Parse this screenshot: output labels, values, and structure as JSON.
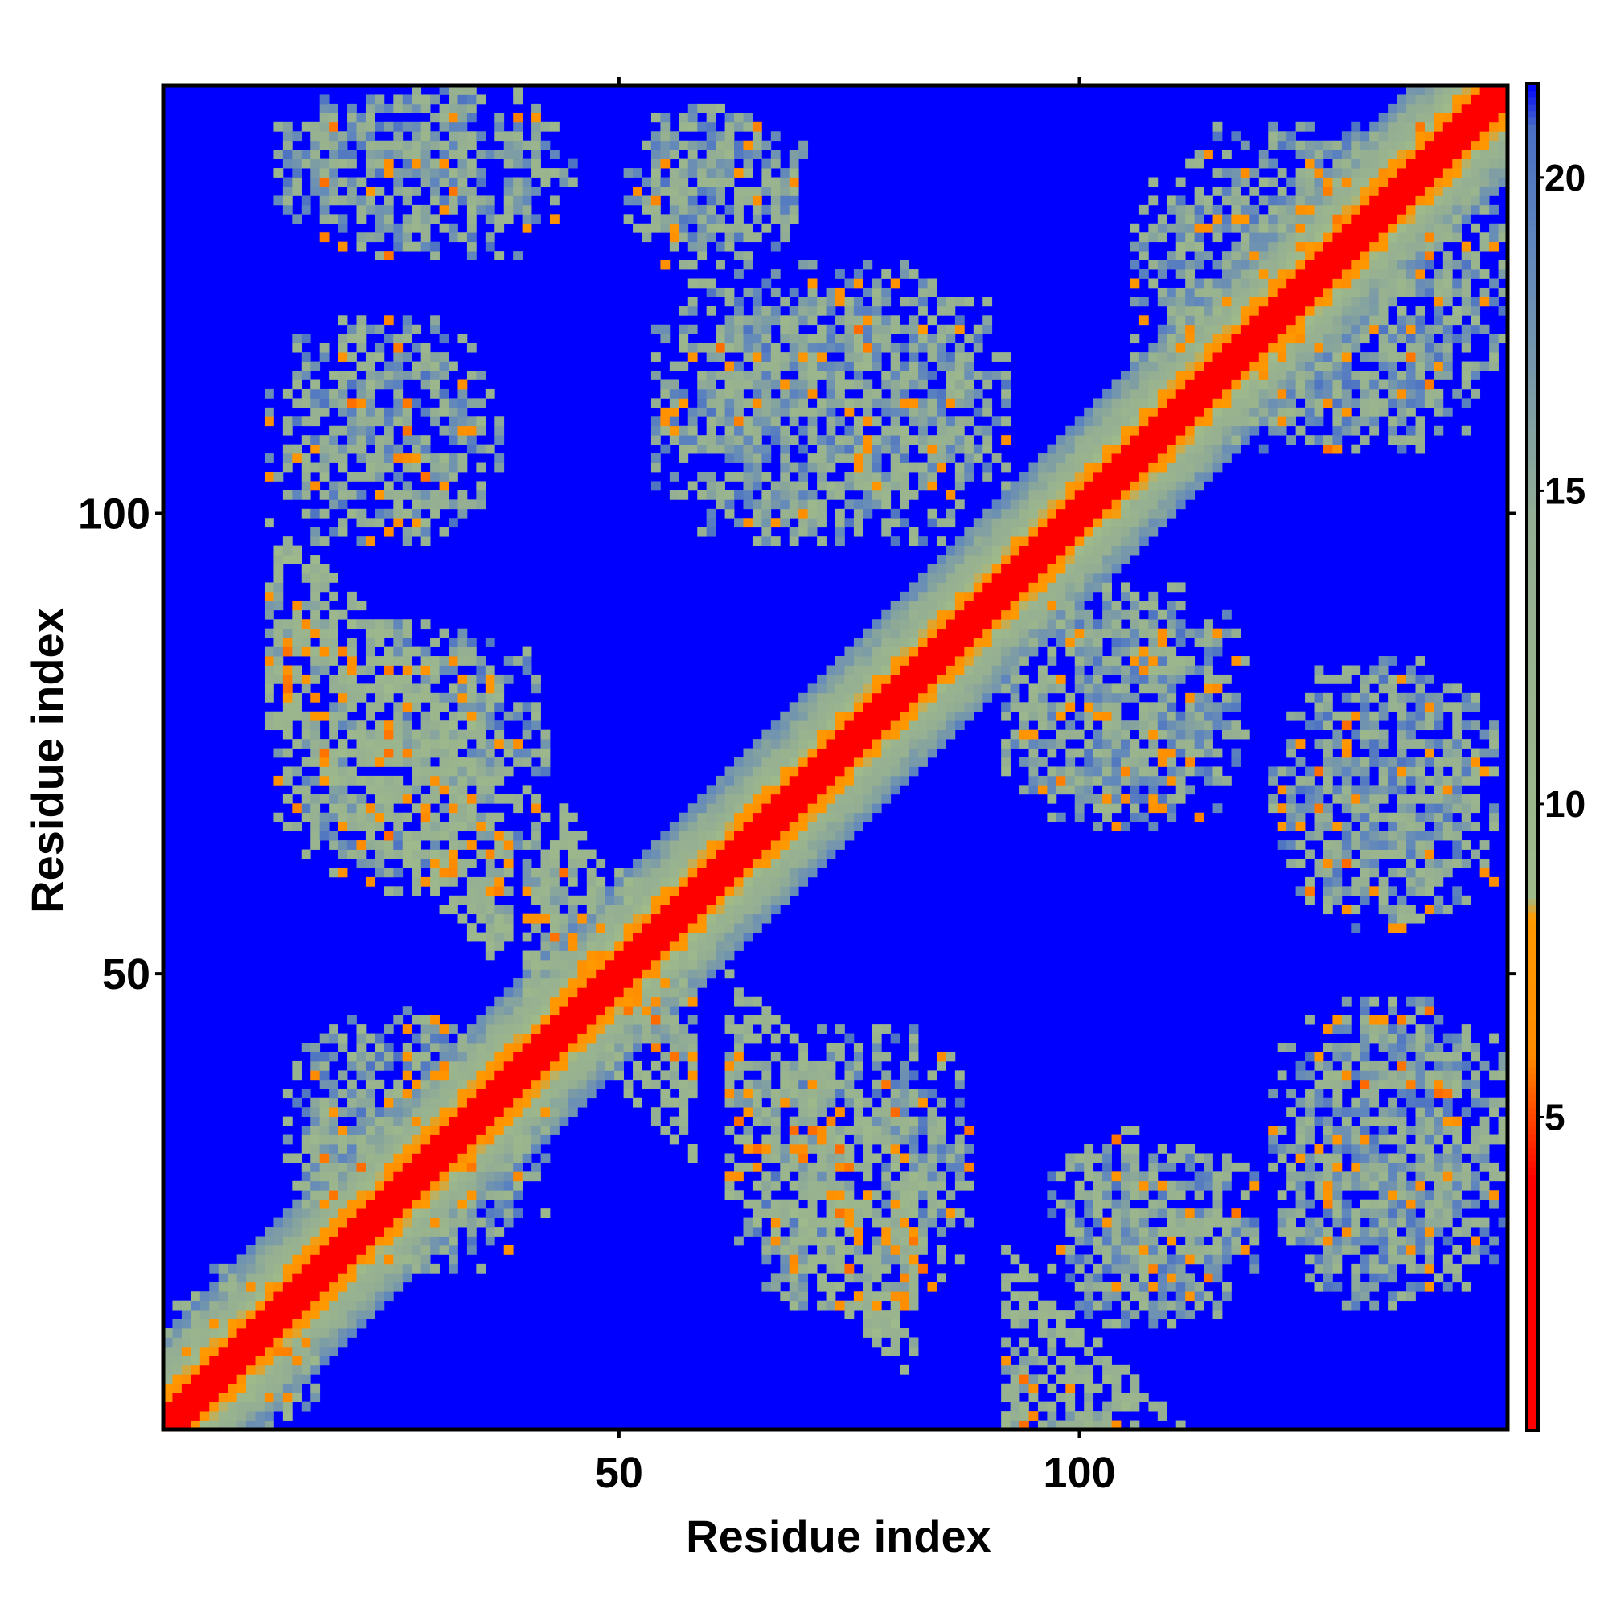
{
  "chart_data": {
    "type": "heatmap",
    "title": "",
    "xlabel": "Residue index",
    "ylabel": "Residue index",
    "xlim": [
      1,
      146
    ],
    "ylim": [
      1,
      146
    ],
    "n_residues": 146,
    "x_ticks": [
      50,
      100
    ],
    "y_ticks": [
      50,
      100
    ],
    "colorbar": {
      "ticks": [
        5,
        10,
        15,
        20
      ],
      "range": [
        0,
        21.5
      ],
      "colors": [
        {
          "value": 0.5,
          "color": "#ff0000"
        },
        {
          "value": 4.0,
          "color": "#ff0000"
        },
        {
          "value": 6.0,
          "color": "#ff8c00"
        },
        {
          "value": 8.2,
          "color": "#ff9900"
        },
        {
          "value": 8.5,
          "color": "#9fba8a"
        },
        {
          "value": 14.5,
          "color": "#94ae93"
        },
        {
          "value": 19.0,
          "color": "#5f86bd"
        },
        {
          "value": 20.8,
          "color": "#4a6fc4"
        },
        {
          "value": 21.5,
          "color": "#0000ff"
        }
      ]
    },
    "description_of_values": "Pairwise residue distance map; diagonal band distance ~0-8, contact clusters ~8-20, background > 21",
    "diagonal": {
      "core_width": 2,
      "orange_width": 4,
      "green_width": 10
    },
    "antidiagonal": {
      "segments": [
        [
          12,
          38
        ],
        [
          40,
          58
        ],
        [
          62,
          82
        ],
        [
          92,
          120
        ]
      ]
    },
    "clusters": [
      {
        "x": [
          13,
          45
        ],
        "y": [
          128,
          146
        ],
        "density": 0.75
      },
      {
        "x": [
          12,
          37
        ],
        "y": [
          97,
          121
        ],
        "density": 0.7
      },
      {
        "x": [
          51,
          70
        ],
        "y": [
          127,
          144
        ],
        "density": 0.75
      },
      {
        "x": [
          54,
          92
        ],
        "y": [
          97,
          127
        ],
        "density": 0.8
      },
      {
        "x": [
          106,
          146
        ],
        "y": [
          107,
          142
        ],
        "density": 0.8
      },
      {
        "x": [
          13,
          42
        ],
        "y": [
          59,
          88
        ],
        "density": 0.8
      },
      {
        "x": [
          92,
          118
        ],
        "y": [
          66,
          92
        ],
        "density": 0.8
      },
      {
        "x": [
          121,
          145
        ],
        "y": [
          55,
          84
        ],
        "density": 0.75
      },
      {
        "x": [
          62,
          88
        ],
        "y": [
          14,
          44
        ],
        "density": 0.8
      },
      {
        "x": [
          97,
          119
        ],
        "y": [
          12,
          33
        ],
        "density": 0.75
      },
      {
        "x": [
          121,
          146
        ],
        "y": [
          14,
          47
        ],
        "density": 0.8
      },
      {
        "x": [
          1,
          18
        ],
        "y": [
          1,
          18
        ],
        "density": 0.7
      },
      {
        "x": [
          14,
          42
        ],
        "y": [
          18,
          46
        ],
        "density": 0.8
      }
    ]
  }
}
